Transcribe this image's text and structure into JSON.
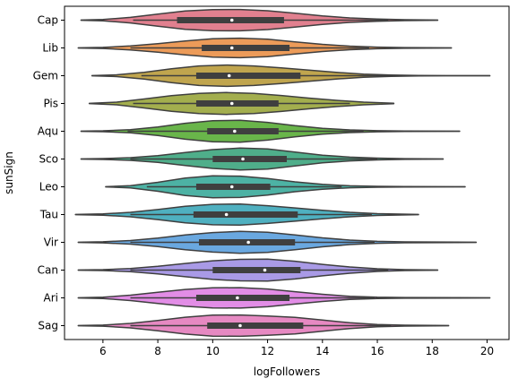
{
  "chart_data": {
    "type": "violin",
    "orientation": "horizontal",
    "xlabel": "logFollowers",
    "ylabel": "sunSign",
    "xlim": [
      4.6,
      20.8
    ],
    "xticks": [
      6,
      8,
      10,
      12,
      14,
      16,
      18,
      20
    ],
    "grid": false,
    "legend": "none",
    "categories": [
      "Cap",
      "Lib",
      "Gem",
      "Pis",
      "Aqu",
      "Sco",
      "Leo",
      "Tau",
      "Vir",
      "Can",
      "Ari",
      "Sag"
    ],
    "series": [
      {
        "category": "Cap",
        "color": "#e1808f",
        "min": 5.2,
        "max": 18.2,
        "q1": 8.7,
        "median": 10.7,
        "q3": 12.6,
        "whisker_low": 7.1,
        "whisker_high": 16.4,
        "density": [
          [
            5.2,
            0.01
          ],
          [
            6.0,
            0.06
          ],
          [
            7.0,
            0.25
          ],
          [
            8.0,
            0.55
          ],
          [
            9.0,
            0.82
          ],
          [
            10.0,
            0.95
          ],
          [
            11.0,
            0.96
          ],
          [
            12.0,
            0.85
          ],
          [
            13.0,
            0.62
          ],
          [
            14.0,
            0.38
          ],
          [
            15.0,
            0.2
          ],
          [
            16.0,
            0.1
          ],
          [
            17.0,
            0.04
          ],
          [
            18.2,
            0.01
          ]
        ]
      },
      {
        "category": "Lib",
        "color": "#ec9b59",
        "min": 5.1,
        "max": 18.7,
        "q1": 9.6,
        "median": 10.7,
        "q3": 12.8,
        "whisker_low": 7.0,
        "whisker_high": 15.7,
        "density": [
          [
            5.1,
            0.01
          ],
          [
            6.0,
            0.05
          ],
          [
            7.0,
            0.18
          ],
          [
            8.0,
            0.38
          ],
          [
            9.0,
            0.62
          ],
          [
            10.0,
            0.82
          ],
          [
            11.0,
            0.88
          ],
          [
            12.0,
            0.78
          ],
          [
            13.0,
            0.55
          ],
          [
            14.0,
            0.32
          ],
          [
            15.0,
            0.16
          ],
          [
            16.0,
            0.07
          ],
          [
            17.0,
            0.03
          ],
          [
            18.7,
            0.01
          ]
        ]
      },
      {
        "category": "Gem",
        "color": "#c0a54e",
        "min": 5.6,
        "max": 20.1,
        "q1": 9.4,
        "median": 10.6,
        "q3": 13.2,
        "whisker_low": 7.4,
        "whisker_high": 17.0,
        "density": [
          [
            5.6,
            0.01
          ],
          [
            6.5,
            0.08
          ],
          [
            7.5,
            0.3
          ],
          [
            8.5,
            0.62
          ],
          [
            9.5,
            0.88
          ],
          [
            10.5,
            0.96
          ],
          [
            11.5,
            0.88
          ],
          [
            12.5,
            0.7
          ],
          [
            13.5,
            0.5
          ],
          [
            14.5,
            0.3
          ],
          [
            15.5,
            0.14
          ],
          [
            16.5,
            0.06
          ],
          [
            17.5,
            0.02
          ],
          [
            18.5,
            0.01
          ],
          [
            20.1,
            0.005
          ]
        ]
      },
      {
        "category": "Pis",
        "color": "#a3ae4e",
        "min": 5.5,
        "max": 16.6,
        "q1": 9.4,
        "median": 10.7,
        "q3": 12.4,
        "whisker_low": 7.1,
        "whisker_high": 15.0,
        "density": [
          [
            5.5,
            0.01
          ],
          [
            6.5,
            0.12
          ],
          [
            7.5,
            0.4
          ],
          [
            8.5,
            0.7
          ],
          [
            9.5,
            0.9
          ],
          [
            10.5,
            0.98
          ],
          [
            11.5,
            0.9
          ],
          [
            12.5,
            0.72
          ],
          [
            13.5,
            0.48
          ],
          [
            14.5,
            0.28
          ],
          [
            15.5,
            0.12
          ],
          [
            16.6,
            0.02
          ]
        ]
      },
      {
        "category": "Aqu",
        "color": "#69b54a",
        "min": 5.2,
        "max": 19.0,
        "q1": 9.8,
        "median": 10.8,
        "q3": 12.4,
        "whisker_low": 6.9,
        "whisker_high": 15.5,
        "density": [
          [
            5.2,
            0.01
          ],
          [
            6.0,
            0.04
          ],
          [
            7.0,
            0.14
          ],
          [
            8.0,
            0.38
          ],
          [
            9.0,
            0.72
          ],
          [
            10.0,
            0.95
          ],
          [
            11.0,
            0.98
          ],
          [
            12.0,
            0.8
          ],
          [
            13.0,
            0.5
          ],
          [
            14.0,
            0.26
          ],
          [
            15.0,
            0.12
          ],
          [
            16.0,
            0.05
          ],
          [
            17.0,
            0.02
          ],
          [
            19.0,
            0.005
          ]
        ]
      },
      {
        "category": "Sco",
        "color": "#4fae8a",
        "min": 5.2,
        "max": 18.4,
        "q1": 10.0,
        "median": 11.1,
        "q3": 12.7,
        "whisker_low": 7.0,
        "whisker_high": 16.0,
        "density": [
          [
            5.2,
            0.01
          ],
          [
            6.0,
            0.04
          ],
          [
            7.0,
            0.12
          ],
          [
            8.0,
            0.3
          ],
          [
            9.0,
            0.58
          ],
          [
            10.0,
            0.85
          ],
          [
            11.0,
            0.98
          ],
          [
            12.0,
            0.9
          ],
          [
            13.0,
            0.62
          ],
          [
            14.0,
            0.35
          ],
          [
            15.0,
            0.17
          ],
          [
            16.0,
            0.08
          ],
          [
            17.0,
            0.03
          ],
          [
            18.4,
            0.01
          ]
        ]
      },
      {
        "category": "Leo",
        "color": "#4db2a4",
        "min": 6.1,
        "max": 19.2,
        "q1": 9.4,
        "median": 10.7,
        "q3": 12.1,
        "whisker_low": 7.6,
        "whisker_high": 14.7,
        "density": [
          [
            6.1,
            0.01
          ],
          [
            7.0,
            0.1
          ],
          [
            8.0,
            0.4
          ],
          [
            9.0,
            0.78
          ],
          [
            10.0,
            0.98
          ],
          [
            11.0,
            0.96
          ],
          [
            12.0,
            0.74
          ],
          [
            13.0,
            0.44
          ],
          [
            14.0,
            0.22
          ],
          [
            15.0,
            0.09
          ],
          [
            16.0,
            0.04
          ],
          [
            17.0,
            0.02
          ],
          [
            19.2,
            0.005
          ]
        ]
      },
      {
        "category": "Tau",
        "color": "#4fb0c0",
        "min": 5.0,
        "max": 17.5,
        "q1": 9.3,
        "median": 10.5,
        "q3": 13.1,
        "whisker_low": 7.0,
        "whisker_high": 15.8,
        "density": [
          [
            5.0,
            0.01
          ],
          [
            6.0,
            0.06
          ],
          [
            7.0,
            0.2
          ],
          [
            8.0,
            0.45
          ],
          [
            9.0,
            0.75
          ],
          [
            10.0,
            0.92
          ],
          [
            11.0,
            0.94
          ],
          [
            12.0,
            0.8
          ],
          [
            13.0,
            0.6
          ],
          [
            14.0,
            0.38
          ],
          [
            15.0,
            0.2
          ],
          [
            16.0,
            0.08
          ],
          [
            17.5,
            0.01
          ]
        ]
      },
      {
        "category": "Vir",
        "color": "#6aa8e0",
        "min": 5.1,
        "max": 19.6,
        "q1": 9.5,
        "median": 11.3,
        "q3": 13.0,
        "whisker_low": 7.0,
        "whisker_high": 15.9,
        "density": [
          [
            5.1,
            0.01
          ],
          [
            6.0,
            0.05
          ],
          [
            7.0,
            0.16
          ],
          [
            8.0,
            0.38
          ],
          [
            9.0,
            0.66
          ],
          [
            10.0,
            0.88
          ],
          [
            11.0,
            0.98
          ],
          [
            12.0,
            0.9
          ],
          [
            13.0,
            0.66
          ],
          [
            14.0,
            0.4
          ],
          [
            15.0,
            0.2
          ],
          [
            16.0,
            0.09
          ],
          [
            17.0,
            0.04
          ],
          [
            19.6,
            0.005
          ]
        ]
      },
      {
        "category": "Can",
        "color": "#a99ae6",
        "min": 5.1,
        "max": 18.2,
        "q1": 10.0,
        "median": 11.9,
        "q3": 13.2,
        "whisker_low": 7.0,
        "whisker_high": 16.4,
        "density": [
          [
            5.1,
            0.01
          ],
          [
            6.0,
            0.04
          ],
          [
            7.0,
            0.14
          ],
          [
            8.0,
            0.34
          ],
          [
            9.0,
            0.6
          ],
          [
            10.0,
            0.84
          ],
          [
            11.0,
            0.97
          ],
          [
            12.0,
            0.98
          ],
          [
            13.0,
            0.8
          ],
          [
            14.0,
            0.52
          ],
          [
            15.0,
            0.28
          ],
          [
            16.0,
            0.12
          ],
          [
            17.0,
            0.04
          ],
          [
            18.2,
            0.01
          ]
        ]
      },
      {
        "category": "Ari",
        "color": "#e28de6",
        "min": 5.1,
        "max": 20.1,
        "q1": 9.4,
        "median": 10.9,
        "q3": 12.8,
        "whisker_low": 7.0,
        "whisker_high": 15.9,
        "density": [
          [
            5.1,
            0.01
          ],
          [
            6.0,
            0.06
          ],
          [
            7.0,
            0.24
          ],
          [
            8.0,
            0.5
          ],
          [
            9.0,
            0.76
          ],
          [
            10.0,
            0.9
          ],
          [
            11.0,
            0.92
          ],
          [
            12.0,
            0.8
          ],
          [
            13.0,
            0.56
          ],
          [
            14.0,
            0.32
          ],
          [
            15.0,
            0.14
          ],
          [
            16.0,
            0.06
          ],
          [
            17.0,
            0.03
          ],
          [
            20.1,
            0.005
          ]
        ]
      },
      {
        "category": "Sag",
        "color": "#e689c2",
        "min": 5.1,
        "max": 18.6,
        "q1": 9.8,
        "median": 11.0,
        "q3": 13.3,
        "whisker_low": 7.0,
        "whisker_high": 16.5,
        "density": [
          [
            5.1,
            0.01
          ],
          [
            6.0,
            0.05
          ],
          [
            7.0,
            0.2
          ],
          [
            8.0,
            0.46
          ],
          [
            9.0,
            0.76
          ],
          [
            10.0,
            0.94
          ],
          [
            11.0,
            0.96
          ],
          [
            12.0,
            0.86
          ],
          [
            13.0,
            0.74
          ],
          [
            14.0,
            0.5
          ],
          [
            15.0,
            0.26
          ],
          [
            16.0,
            0.1
          ],
          [
            17.0,
            0.04
          ],
          [
            18.6,
            0.01
          ]
        ]
      }
    ]
  }
}
